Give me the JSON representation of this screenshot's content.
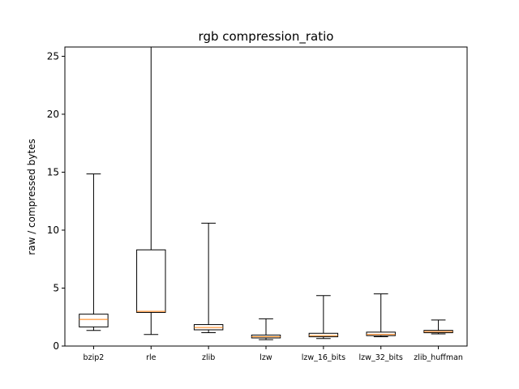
{
  "chart_data": {
    "type": "boxplot",
    "title": "rgb compression_ratio",
    "xlabel": "",
    "ylabel": "raw / compressed bytes",
    "ylim": [
      0,
      25.8
    ],
    "yticks": [
      0,
      5,
      10,
      15,
      20,
      25
    ],
    "grid": false,
    "legend": "none",
    "colors": {
      "box": "#000000",
      "median": "#ff7f0e",
      "background": "#ffffff"
    },
    "categories": [
      "bzip2",
      "rle",
      "zlib",
      "lzw",
      "lzw_16_bits",
      "lzw_32_bits",
      "zlib_huffman"
    ],
    "boxes": [
      {
        "whislo": 1.35,
        "q1": 1.65,
        "med": 2.3,
        "q3": 2.75,
        "whishi": 14.85
      },
      {
        "whislo": 1.0,
        "q1": 2.9,
        "med": 3.0,
        "q3": 8.3,
        "whishi": 25.8
      },
      {
        "whislo": 1.15,
        "q1": 1.4,
        "med": 1.6,
        "q3": 1.85,
        "whishi": 10.6
      },
      {
        "whislo": 0.55,
        "q1": 0.7,
        "med": 0.8,
        "q3": 0.95,
        "whishi": 2.35
      },
      {
        "whislo": 0.65,
        "q1": 0.8,
        "med": 0.9,
        "q3": 1.1,
        "whishi": 4.35
      },
      {
        "whislo": 0.8,
        "q1": 0.9,
        "med": 1.0,
        "q3": 1.2,
        "whishi": 4.5
      },
      {
        "whislo": 1.05,
        "q1": 1.15,
        "med": 1.25,
        "q3": 1.35,
        "whishi": 2.25
      }
    ]
  }
}
